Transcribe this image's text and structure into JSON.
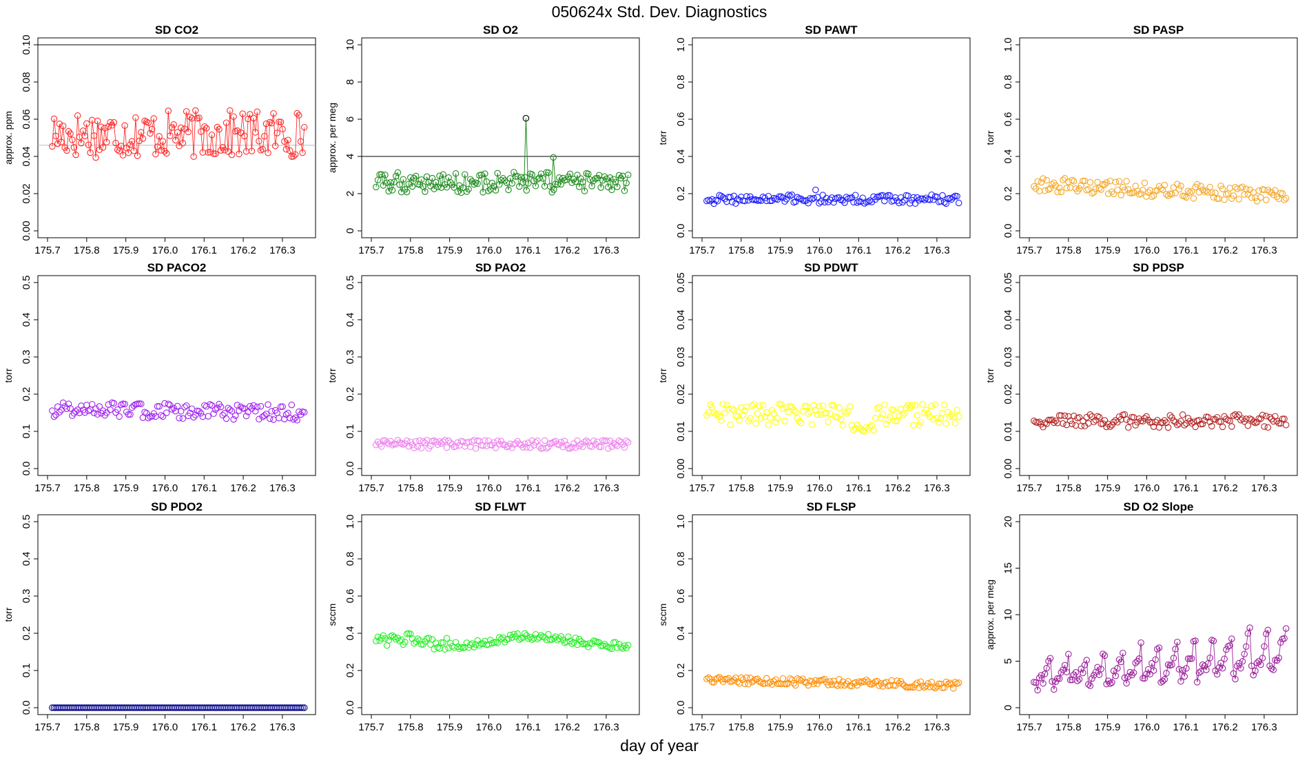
{
  "figure": {
    "title": "050624x   Std. Dev. Diagnostics",
    "xlabel": "day of year",
    "x_ticks": [
      "175.7",
      "175.8",
      "175.9",
      "176.0",
      "176.1",
      "176.2",
      "176.3"
    ],
    "xlim": [
      175.7,
      176.36
    ]
  },
  "chart_data": [
    {
      "type": "scatter",
      "title": "SD CO2",
      "ylabel": "approx. ppm",
      "ylim": [
        0,
        0.1
      ],
      "y_ticks": [
        "0.00",
        "0.02",
        "0.04",
        "0.06",
        "0.08",
        "0.10"
      ],
      "color": "#ff2a2a",
      "connected": true,
      "reference_lines": [
        {
          "y": 0.1,
          "color": "#000000"
        },
        {
          "y": 0.046,
          "color": "#bbbbbb"
        }
      ],
      "base": 0.052,
      "spread": 0.008,
      "trend": 0
    },
    {
      "type": "scatter",
      "title": "SD O2",
      "ylabel": "approx. per meg",
      "ylim": [
        0,
        10
      ],
      "y_ticks": [
        "0",
        "2",
        "4",
        "6",
        "8",
        "10"
      ],
      "color": "#1e8c1e",
      "connected": true,
      "reference_lines": [
        {
          "y": 4,
          "color": "#000000"
        }
      ],
      "base": 2.6,
      "spread": 0.35,
      "trend": 0,
      "outliers": [
        {
          "x": 176.095,
          "y": 6.05,
          "color": "#000000"
        },
        {
          "x": 176.165,
          "y": 3.95,
          "color": "#1e8c1e"
        }
      ]
    },
    {
      "type": "scatter",
      "title": "SD PAWT",
      "ylabel": "torr",
      "ylim": [
        0,
        1
      ],
      "y_ticks": [
        "0.0",
        "0.2",
        "0.4",
        "0.6",
        "0.8",
        "1.0"
      ],
      "color": "#1a1aff",
      "connected": false,
      "base": 0.17,
      "spread": 0.015,
      "trend": 0,
      "peak": {
        "x": 175.99,
        "y": 0.22
      }
    },
    {
      "type": "scatter",
      "title": "SD PASP",
      "ylabel": "torr",
      "ylim": [
        0,
        1
      ],
      "y_ticks": [
        "0.0",
        "0.2",
        "0.4",
        "0.6",
        "0.8",
        "1.0"
      ],
      "color": "#f5a623",
      "connected": false,
      "base": 0.25,
      "spread": 0.025,
      "trend": -0.06
    },
    {
      "type": "scatter",
      "title": "SD PACO2",
      "ylabel": "torr",
      "ylim": [
        0,
        0.5
      ],
      "y_ticks": [
        "0.0",
        "0.1",
        "0.2",
        "0.3",
        "0.4",
        "0.5"
      ],
      "color": "#a020f0",
      "connected": false,
      "base": 0.16,
      "spread": 0.013,
      "trend": -0.01
    },
    {
      "type": "scatter",
      "title": "SD PAO2",
      "ylabel": "torr",
      "ylim": [
        0,
        0.5
      ],
      "y_ticks": [
        "0.0",
        "0.1",
        "0.2",
        "0.3",
        "0.4",
        "0.5"
      ],
      "color": "#ee82ee",
      "connected": false,
      "base": 0.065,
      "spread": 0.007,
      "trend": 0
    },
    {
      "type": "scatter",
      "title": "SD PDWT",
      "ylabel": "torr",
      "ylim": [
        0,
        0.05
      ],
      "y_ticks": [
        "0.00",
        "0.01",
        "0.02",
        "0.03",
        "0.04",
        "0.05"
      ],
      "color": "#ffff00",
      "connected": false,
      "base": 0.0145,
      "spread": 0.0018,
      "trend": 0,
      "dip": {
        "x": 176.11,
        "y": 0.011
      }
    },
    {
      "type": "scatter",
      "title": "SD PDSP",
      "ylabel": "torr",
      "ylim": [
        0,
        0.05
      ],
      "y_ticks": [
        "0.00",
        "0.01",
        "0.02",
        "0.03",
        "0.04",
        "0.05"
      ],
      "color": "#b22222",
      "connected": false,
      "base": 0.0128,
      "spread": 0.0011,
      "trend": 0
    },
    {
      "type": "scatter",
      "title": "SD PDO2",
      "ylabel": "torr",
      "ylim": [
        0,
        0.5
      ],
      "y_ticks": [
        "0.0",
        "0.1",
        "0.2",
        "0.3",
        "0.4",
        "0.5"
      ],
      "color": "#00008b",
      "connected": false,
      "base": 0.0,
      "spread": 0.0,
      "trend": 0
    },
    {
      "type": "scatter",
      "title": "SD FLWT",
      "ylabel": "sccm",
      "ylim": [
        0,
        1
      ],
      "y_ticks": [
        "0.0",
        "0.2",
        "0.4",
        "0.6",
        "0.8",
        "1.0"
      ],
      "color": "#22ee22",
      "connected": false,
      "base": 0.36,
      "spread": 0.012,
      "trend": 0,
      "wave": 0.025
    },
    {
      "type": "scatter",
      "title": "SD FLSP",
      "ylabel": "sccm",
      "ylim": [
        0,
        1
      ],
      "y_ticks": [
        "0.0",
        "0.2",
        "0.4",
        "0.6",
        "0.8",
        "1.0"
      ],
      "color": "#ff8c00",
      "connected": false,
      "base": 0.15,
      "spread": 0.012,
      "trend": -0.03
    },
    {
      "type": "scatter",
      "title": "SD O2 Slope",
      "ylabel": "approx. per meg",
      "ylim": [
        0,
        20
      ],
      "y_ticks": [
        "0",
        "5",
        "10",
        "15",
        "20"
      ],
      "color": "#9b1f9b",
      "connected": true,
      "base": 2.5,
      "spread": 0.5,
      "trend": 1.5,
      "sawtooth": 4
    }
  ]
}
